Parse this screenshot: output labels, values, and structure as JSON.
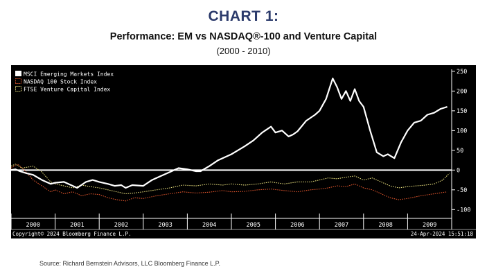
{
  "header": {
    "heading": "CHART 1:",
    "title": "Performance: EM vs NASDAQ®-100 and Venture Capital",
    "subtitle": "(2000 - 2010)"
  },
  "footer": {
    "source": "Source: Richard Bernstein Advisors, LLC Bloomberg Finance L.P."
  },
  "chart_data": {
    "type": "line",
    "title": "Performance: EM vs NASDAQ®-100 and Venture Capital",
    "subtitle": "(2000 - 2010)",
    "xlabel": "",
    "ylabel": "",
    "xlim": [
      2000.0,
      2010.0
    ],
    "ylim": [
      -110,
      255
    ],
    "y_ticks": [
      250,
      200,
      150,
      100,
      50,
      0,
      -50,
      -100
    ],
    "x_tick_labels": [
      "2000",
      "2001",
      "2002",
      "2003",
      "2004",
      "2005",
      "2006",
      "2007",
      "2008",
      "2009"
    ],
    "reference_line": 0,
    "grid": false,
    "legend_position": "top-left",
    "background": "#000000",
    "copyright": "Copyright© 2024 Bloomberg Finance L.P.",
    "timestamp": "24-Apr-2024 15:51:18",
    "series": [
      {
        "name": "MSCI Emerging Markets Index",
        "color": "#ffffff",
        "style": "solid",
        "x": [
          2000.0,
          2000.1,
          2000.2,
          2000.35,
          2000.5,
          2000.7,
          2000.9,
          2001.0,
          2001.2,
          2001.5,
          2001.7,
          2001.85,
          2002.0,
          2002.2,
          2002.35,
          2002.5,
          2002.6,
          2002.75,
          2003.0,
          2003.2,
          2003.4,
          2003.6,
          2003.8,
          2004.0,
          2004.2,
          2004.3,
          2004.5,
          2004.7,
          2004.9,
          2005.0,
          2005.15,
          2005.3,
          2005.5,
          2005.7,
          2005.9,
          2006.0,
          2006.15,
          2006.3,
          2006.4,
          2006.5,
          2006.7,
          2006.9,
          2007.0,
          2007.15,
          2007.3,
          2007.4,
          2007.5,
          2007.6,
          2007.7,
          2007.8,
          2007.9,
          2008.0,
          2008.15,
          2008.3,
          2008.45,
          2008.55,
          2008.7,
          2008.85,
          2009.0,
          2009.15,
          2009.3,
          2009.45,
          2009.6,
          2009.75,
          2009.9
        ],
        "values": [
          0,
          2,
          -3,
          -8,
          -12,
          -25,
          -35,
          -32,
          -30,
          -45,
          -30,
          -25,
          -30,
          -35,
          -40,
          -38,
          -45,
          -38,
          -40,
          -25,
          -15,
          -5,
          5,
          2,
          -3,
          -3,
          10,
          25,
          35,
          40,
          50,
          60,
          75,
          95,
          110,
          95,
          100,
          85,
          90,
          98,
          125,
          140,
          150,
          180,
          232,
          210,
          180,
          200,
          175,
          205,
          175,
          160,
          100,
          45,
          35,
          40,
          30,
          70,
          100,
          120,
          125,
          140,
          145,
          155,
          160
        ]
      },
      {
        "name": "NASDAQ 100 Stock Index",
        "color": "#e0552c",
        "style": "dotted",
        "x": [
          2000.0,
          2000.15,
          2000.3,
          2000.5,
          2000.7,
          2000.9,
          2001.0,
          2001.2,
          2001.4,
          2001.6,
          2001.8,
          2002.0,
          2002.2,
          2002.4,
          2002.6,
          2002.8,
          2003.0,
          2003.3,
          2003.6,
          2003.9,
          2004.2,
          2004.5,
          2004.8,
          2005.0,
          2005.3,
          2005.6,
          2005.9,
          2006.2,
          2006.5,
          2006.8,
          2007.0,
          2007.2,
          2007.4,
          2007.6,
          2007.8,
          2008.0,
          2008.2,
          2008.4,
          2008.6,
          2008.8,
          2009.0,
          2009.3,
          2009.6,
          2009.9
        ],
        "values": [
          5,
          15,
          0,
          -25,
          -40,
          -55,
          -50,
          -60,
          -55,
          -65,
          -60,
          -62,
          -70,
          -75,
          -78,
          -70,
          -72,
          -65,
          -60,
          -55,
          -58,
          -56,
          -52,
          -55,
          -54,
          -50,
          -48,
          -52,
          -55,
          -50,
          -48,
          -45,
          -40,
          -42,
          -35,
          -45,
          -50,
          -60,
          -70,
          -75,
          -72,
          -65,
          -60,
          -55
        ]
      },
      {
        "name": "FTSE Venture Capital Index",
        "color": "#e8df7c",
        "style": "dotted",
        "x": [
          2000.0,
          2000.1,
          2000.25,
          2000.5,
          2000.7,
          2000.9,
          2001.0,
          2001.2,
          2001.4,
          2001.6,
          2001.8,
          2002.0,
          2002.2,
          2002.4,
          2002.6,
          2002.8,
          2003.0,
          2003.3,
          2003.6,
          2003.9,
          2004.2,
          2004.5,
          2004.8,
          2005.0,
          2005.3,
          2005.6,
          2005.9,
          2006.2,
          2006.5,
          2006.8,
          2007.0,
          2007.2,
          2007.4,
          2007.6,
          2007.8,
          2008.0,
          2008.2,
          2008.4,
          2008.6,
          2008.8,
          2009.0,
          2009.2,
          2009.4,
          2009.6,
          2009.8,
          2009.95
        ],
        "values": [
          10,
          15,
          5,
          10,
          -5,
          -30,
          -35,
          -40,
          -45,
          -38,
          -42,
          -45,
          -50,
          -55,
          -60,
          -58,
          -55,
          -50,
          -45,
          -38,
          -40,
          -35,
          -38,
          -35,
          -38,
          -35,
          -30,
          -35,
          -30,
          -30,
          -25,
          -20,
          -22,
          -18,
          -15,
          -25,
          -20,
          -30,
          -40,
          -45,
          -42,
          -40,
          -38,
          -35,
          -25,
          -8
        ]
      }
    ]
  }
}
